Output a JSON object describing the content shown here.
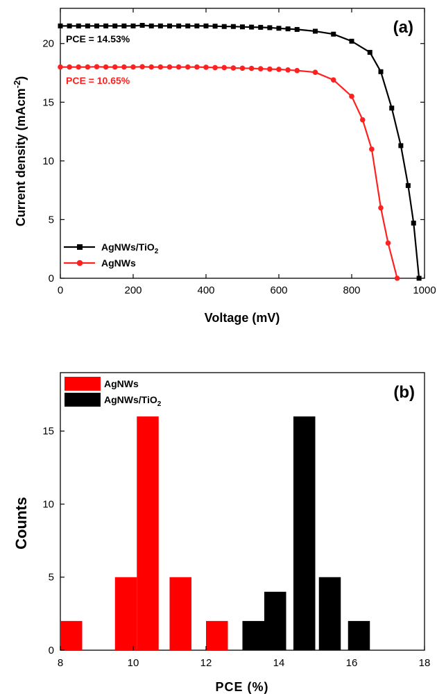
{
  "chart_data": [
    {
      "type": "line",
      "panel_label": "(a)",
      "xlabel": "Voltage (mV)",
      "ylabel_main": "Current density (mAcm",
      "ylabel_sup": "-2",
      "ylabel_close": ")",
      "xlim": [
        0,
        1000
      ],
      "ylim": [
        0,
        23
      ],
      "xticks": [
        0,
        200,
        400,
        600,
        800,
        1000
      ],
      "yticks": [
        0,
        5,
        10,
        15,
        20
      ],
      "grid": false,
      "legend_position": "bottom-left",
      "series": [
        {
          "name_main": "AgNWs/TiO",
          "name_sub": "2",
          "color": "#000000",
          "marker": "square",
          "annotation": "PCE = 14.53%",
          "points": [
            [
              0,
              21.5
            ],
            [
              25,
              21.5
            ],
            [
              50,
              21.5
            ],
            [
              75,
              21.5
            ],
            [
              100,
              21.5
            ],
            [
              125,
              21.5
            ],
            [
              150,
              21.5
            ],
            [
              175,
              21.5
            ],
            [
              200,
              21.5
            ],
            [
              225,
              21.55
            ],
            [
              250,
              21.5
            ],
            [
              275,
              21.5
            ],
            [
              300,
              21.5
            ],
            [
              325,
              21.5
            ],
            [
              350,
              21.5
            ],
            [
              375,
              21.5
            ],
            [
              400,
              21.5
            ],
            [
              425,
              21.48
            ],
            [
              450,
              21.45
            ],
            [
              475,
              21.45
            ],
            [
              500,
              21.42
            ],
            [
              525,
              21.4
            ],
            [
              550,
              21.38
            ],
            [
              575,
              21.35
            ],
            [
              600,
              21.3
            ],
            [
              625,
              21.25
            ],
            [
              650,
              21.2
            ],
            [
              700,
              21.05
            ],
            [
              750,
              20.8
            ],
            [
              800,
              20.2
            ],
            [
              850,
              19.25
            ],
            [
              880,
              17.6
            ],
            [
              910,
              14.5
            ],
            [
              935,
              11.3
            ],
            [
              955,
              7.9
            ],
            [
              970,
              4.7
            ],
            [
              985,
              0
            ]
          ]
        },
        {
          "name_main": "AgNWs",
          "name_sub": "",
          "color": "#ff2020",
          "marker": "circle",
          "annotation": "PCE = 10.65%",
          "points": [
            [
              0,
              18.0
            ],
            [
              25,
              18.0
            ],
            [
              50,
              18.0
            ],
            [
              75,
              18.0
            ],
            [
              100,
              18.02
            ],
            [
              125,
              18.0
            ],
            [
              150,
              18.0
            ],
            [
              175,
              18.0
            ],
            [
              200,
              18.0
            ],
            [
              225,
              18.02
            ],
            [
              250,
              18.0
            ],
            [
              275,
              18.0
            ],
            [
              300,
              18.0
            ],
            [
              325,
              18.0
            ],
            [
              350,
              18.0
            ],
            [
              375,
              18.0
            ],
            [
              400,
              17.98
            ],
            [
              425,
              17.95
            ],
            [
              450,
              17.95
            ],
            [
              475,
              17.92
            ],
            [
              500,
              17.9
            ],
            [
              525,
              17.88
            ],
            [
              550,
              17.85
            ],
            [
              575,
              17.82
            ],
            [
              600,
              17.8
            ],
            [
              625,
              17.75
            ],
            [
              650,
              17.7
            ],
            [
              700,
              17.55
            ],
            [
              750,
              16.9
            ],
            [
              800,
              15.5
            ],
            [
              830,
              13.5
            ],
            [
              855,
              11.0
            ],
            [
              880,
              6.0
            ],
            [
              900,
              3.0
            ],
            [
              925,
              0
            ]
          ]
        }
      ]
    },
    {
      "type": "bar",
      "panel_label": "(b)",
      "xlabel": "PCE (%)",
      "ylabel": "Counts",
      "xlim": [
        8,
        18
      ],
      "ylim": [
        0,
        19
      ],
      "xticks": [
        8,
        10,
        12,
        14,
        16,
        18
      ],
      "yticks": [
        0,
        5,
        10,
        15
      ],
      "bar_width": 0.6,
      "grid": false,
      "legend_position": "top-left",
      "series": [
        {
          "name_main": "AgNWs",
          "name_sub": "",
          "color": "#ff0000",
          "bins": [
            8.3,
            9.8,
            10.4,
            11.3,
            12.3
          ],
          "values": [
            2,
            5,
            16,
            5,
            2
          ]
        },
        {
          "name_main": "AgNWs/TiO",
          "name_sub": "2",
          "color": "#000000",
          "bins": [
            13.3,
            13.9,
            14.7,
            15.4,
            16.2
          ],
          "values": [
            2,
            4,
            16,
            5,
            2
          ]
        }
      ]
    }
  ]
}
